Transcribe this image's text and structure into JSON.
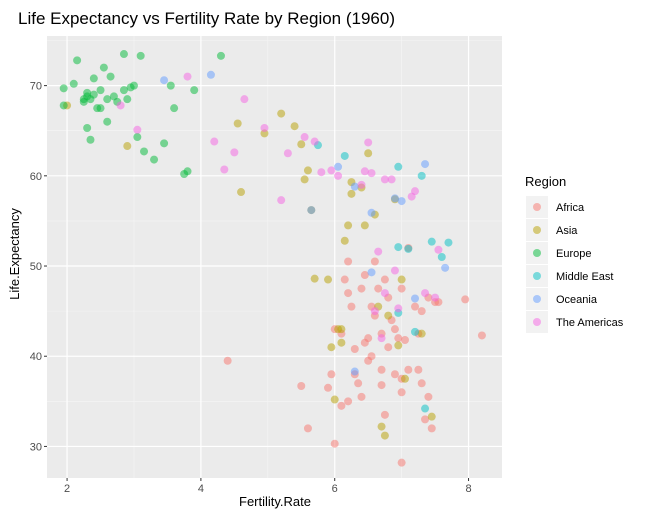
{
  "chart_data": {
    "type": "scatter",
    "title": "Life Expectancy vs Fertility Rate by Region (1960)",
    "xlabel": "Fertility.Rate",
    "ylabel": "Life.Expectancy",
    "xlim": [
      1.7,
      8.5
    ],
    "ylim": [
      26.5,
      75.5
    ],
    "xticks": [
      2,
      4,
      6,
      8
    ],
    "yticks": [
      30,
      40,
      50,
      60,
      70
    ],
    "grid": true,
    "background": "#ebebeb",
    "point_alpha": 0.5,
    "legend": {
      "title": "Region",
      "placement": "right"
    },
    "series": [
      {
        "name": "Africa",
        "color": "#F8766D",
        "points": [
          [
            4.4,
            39.5
          ],
          [
            5.5,
            36.7
          ],
          [
            5.6,
            32.0
          ],
          [
            5.9,
            36.5
          ],
          [
            5.95,
            38.0
          ],
          [
            6.0,
            30.3
          ],
          [
            6.0,
            43.0
          ],
          [
            6.1,
            42.5
          ],
          [
            6.1,
            34.5
          ],
          [
            6.2,
            35.0
          ],
          [
            6.2,
            47.0
          ],
          [
            6.25,
            45.5
          ],
          [
            6.3,
            40.8
          ],
          [
            6.3,
            38.0
          ],
          [
            6.35,
            37.0
          ],
          [
            6.4,
            35.5
          ],
          [
            6.4,
            47.5
          ],
          [
            6.45,
            49.0
          ],
          [
            6.5,
            42.0
          ],
          [
            6.5,
            39.5
          ],
          [
            6.55,
            45.5
          ],
          [
            6.55,
            40.0
          ],
          [
            6.6,
            44.5
          ],
          [
            6.6,
            50.5
          ],
          [
            6.65,
            47.5
          ],
          [
            6.7,
            42.5
          ],
          [
            6.7,
            38.5
          ],
          [
            6.75,
            48.5
          ],
          [
            6.75,
            33.5
          ],
          [
            6.8,
            46.5
          ],
          [
            6.8,
            41.0
          ],
          [
            6.85,
            44.0
          ],
          [
            6.9,
            43.0
          ],
          [
            6.9,
            38.0
          ],
          [
            6.95,
            42.0
          ],
          [
            7.0,
            37.5
          ],
          [
            7.0,
            47.5
          ],
          [
            7.0,
            36.0
          ],
          [
            7.0,
            28.2
          ],
          [
            7.05,
            41.8
          ],
          [
            7.1,
            52.0
          ],
          [
            7.1,
            38.5
          ],
          [
            7.2,
            45.5
          ],
          [
            7.25,
            42.5
          ],
          [
            7.25,
            38.5
          ],
          [
            7.3,
            37.0
          ],
          [
            7.3,
            45.0
          ],
          [
            7.35,
            33.0
          ],
          [
            7.4,
            35.5
          ],
          [
            7.4,
            46.5
          ],
          [
            7.45,
            32.0
          ],
          [
            7.5,
            46.0
          ],
          [
            7.55,
            46.0
          ],
          [
            7.95,
            46.3
          ],
          [
            8.2,
            42.3
          ],
          [
            6.15,
            48.5
          ],
          [
            6.45,
            41.5
          ],
          [
            6.2,
            50.5
          ],
          [
            6.7,
            36.8
          ]
        ]
      },
      {
        "name": "Asia",
        "color": "#B79F00",
        "points": [
          [
            2.0,
            67.8
          ],
          [
            2.9,
            63.3
          ],
          [
            4.55,
            65.8
          ],
          [
            4.6,
            58.2
          ],
          [
            4.95,
            64.7
          ],
          [
            5.2,
            66.9
          ],
          [
            5.4,
            65.5
          ],
          [
            5.5,
            63.5
          ],
          [
            5.55,
            59.6
          ],
          [
            5.6,
            60.6
          ],
          [
            5.65,
            56.2
          ],
          [
            5.7,
            48.6
          ],
          [
            5.9,
            48.5
          ],
          [
            6.0,
            35.2
          ],
          [
            6.05,
            43.0
          ],
          [
            6.1,
            43.0
          ],
          [
            6.15,
            52.8
          ],
          [
            6.2,
            54.5
          ],
          [
            6.25,
            59.3
          ],
          [
            6.4,
            58.7
          ],
          [
            6.45,
            54.5
          ],
          [
            6.5,
            62.5
          ],
          [
            6.6,
            55.7
          ],
          [
            6.65,
            45.5
          ],
          [
            6.7,
            32.2
          ],
          [
            6.75,
            31.2
          ],
          [
            6.8,
            44.5
          ],
          [
            6.9,
            57.4
          ],
          [
            6.95,
            41.2
          ],
          [
            7.0,
            48.5
          ],
          [
            7.05,
            37.5
          ],
          [
            7.3,
            42.5
          ],
          [
            7.45,
            33.3
          ],
          [
            6.1,
            41.5
          ],
          [
            6.25,
            58.0
          ],
          [
            5.95,
            41.0
          ]
        ]
      },
      {
        "name": "Europe",
        "color": "#00BA38",
        "points": [
          [
            1.95,
            67.8
          ],
          [
            1.95,
            69.7
          ],
          [
            2.1,
            70.2
          ],
          [
            2.15,
            72.8
          ],
          [
            2.25,
            68.2
          ],
          [
            2.25,
            68.5
          ],
          [
            2.3,
            68.8
          ],
          [
            2.3,
            69.2
          ],
          [
            2.3,
            65.3
          ],
          [
            2.35,
            64.0
          ],
          [
            2.35,
            68.5
          ],
          [
            2.4,
            70.8
          ],
          [
            2.4,
            69.0
          ],
          [
            2.5,
            67.5
          ],
          [
            2.5,
            69.5
          ],
          [
            2.55,
            72.0
          ],
          [
            2.6,
            68.5
          ],
          [
            2.6,
            66.0
          ],
          [
            2.65,
            71.0
          ],
          [
            2.7,
            68.8
          ],
          [
            2.75,
            68.2
          ],
          [
            2.85,
            69.5
          ],
          [
            2.85,
            73.5
          ],
          [
            2.9,
            68.5
          ],
          [
            2.95,
            69.8
          ],
          [
            3.0,
            70.0
          ],
          [
            3.05,
            64.3
          ],
          [
            3.1,
            73.3
          ],
          [
            3.15,
            62.7
          ],
          [
            3.3,
            61.8
          ],
          [
            3.45,
            63.6
          ],
          [
            3.55,
            70.0
          ],
          [
            3.6,
            67.5
          ],
          [
            3.75,
            60.2
          ],
          [
            3.8,
            60.5
          ],
          [
            3.9,
            69.5
          ],
          [
            4.3,
            73.3
          ],
          [
            2.45,
            67.5
          ]
        ]
      },
      {
        "name": "Middle East",
        "color": "#00BFC4",
        "points": [
          [
            5.75,
            63.4
          ],
          [
            6.15,
            62.2
          ],
          [
            6.95,
            52.1
          ],
          [
            6.95,
            44.8
          ],
          [
            6.95,
            61.0
          ],
          [
            7.1,
            51.9
          ],
          [
            7.2,
            42.7
          ],
          [
            7.3,
            60.0
          ],
          [
            7.35,
            34.2
          ],
          [
            7.45,
            52.7
          ],
          [
            7.6,
            51.0
          ],
          [
            7.7,
            52.6
          ]
        ]
      },
      {
        "name": "Oceania",
        "color": "#619CFF",
        "points": [
          [
            3.45,
            70.6
          ],
          [
            4.15,
            71.2
          ],
          [
            5.65,
            56.2
          ],
          [
            6.05,
            61.0
          ],
          [
            6.3,
            38.3
          ],
          [
            6.55,
            55.9
          ],
          [
            6.9,
            57.5
          ],
          [
            7.0,
            57.2
          ],
          [
            7.2,
            46.4
          ],
          [
            7.35,
            61.3
          ],
          [
            7.65,
            49.8
          ],
          [
            6.3,
            58.8
          ],
          [
            6.55,
            49.3
          ]
        ]
      },
      {
        "name": "The Americas",
        "color": "#F564E3",
        "points": [
          [
            2.8,
            67.8
          ],
          [
            3.05,
            65.1
          ],
          [
            3.8,
            71.0
          ],
          [
            4.2,
            63.8
          ],
          [
            4.35,
            60.7
          ],
          [
            4.5,
            62.6
          ],
          [
            4.65,
            68.5
          ],
          [
            4.95,
            65.3
          ],
          [
            5.2,
            57.3
          ],
          [
            5.3,
            62.5
          ],
          [
            5.55,
            64.3
          ],
          [
            5.7,
            63.8
          ],
          [
            5.8,
            60.4
          ],
          [
            5.95,
            60.6
          ],
          [
            6.05,
            60.0
          ],
          [
            6.4,
            59.0
          ],
          [
            6.45,
            60.5
          ],
          [
            6.5,
            63.7
          ],
          [
            6.55,
            60.3
          ],
          [
            6.6,
            45.0
          ],
          [
            6.65,
            51.6
          ],
          [
            6.7,
            42.0
          ],
          [
            6.75,
            59.6
          ],
          [
            6.85,
            59.6
          ],
          [
            6.9,
            49.5
          ],
          [
            6.95,
            45.3
          ],
          [
            7.15,
            57.7
          ],
          [
            7.2,
            58.3
          ],
          [
            7.35,
            47.0
          ],
          [
            7.5,
            46.5
          ],
          [
            7.55,
            51.8
          ],
          [
            6.75,
            47.0
          ]
        ]
      }
    ]
  }
}
